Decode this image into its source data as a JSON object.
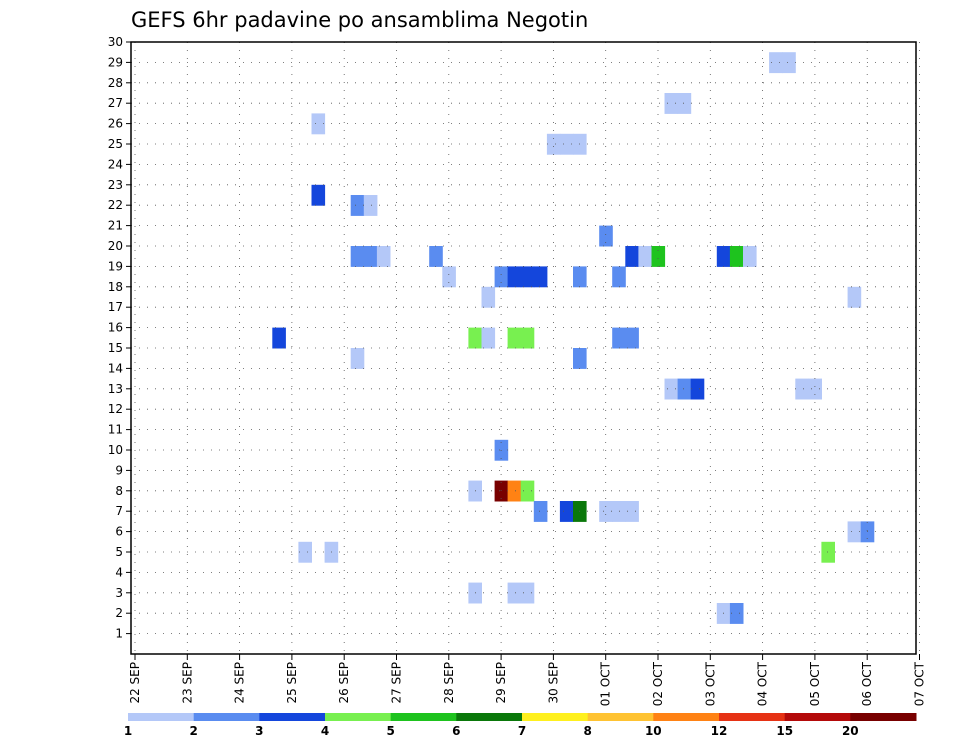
{
  "chart_data": {
    "type": "heatmap",
    "title": "GEFS 6hr padavine po ansamblima Negotin",
    "xlabel": "",
    "ylabel": "",
    "x_ticks": [
      "22 SEP",
      "23 SEP",
      "24 SEP",
      "25 SEP",
      "26 SEP",
      "27 SEP",
      "28 SEP",
      "29 SEP",
      "30 SEP",
      "01 OCT",
      "02 OCT",
      "03 OCT",
      "04 OCT",
      "05 OCT",
      "06 OCT",
      "07 OCT"
    ],
    "y_ticks": [
      "1",
      "2",
      "3",
      "4",
      "5",
      "6",
      "7",
      "8",
      "9",
      "10",
      "11",
      "12",
      "13",
      "14",
      "15",
      "16",
      "17",
      "18",
      "19",
      "20",
      "21",
      "22",
      "23",
      "24",
      "25",
      "26",
      "27",
      "28",
      "29",
      "30"
    ],
    "xlim": [
      0,
      15
    ],
    "ylim": [
      0,
      30
    ],
    "grid": true,
    "colorbar": {
      "colors": [
        "#b4c8f8",
        "#5a8cf0",
        "#1446dc",
        "#78f050",
        "#1ec31e",
        "#0a780a",
        "#fff01e",
        "#ffc332",
        "#ff8214",
        "#e63214",
        "#b40a0a",
        "#780000"
      ],
      "labels": [
        "1",
        "2",
        "3",
        "4",
        "5",
        "6",
        "7",
        "8",
        "10",
        "12",
        "15",
        "20"
      ]
    },
    "cells": [
      {
        "x": 5.75,
        "y": 15.5,
        "v": 3
      },
      {
        "x": 6.25,
        "y": 5,
        "v": 1
      },
      {
        "x": 6.5,
        "y": 22.5,
        "v": 3
      },
      {
        "x": 6.5,
        "y": 26,
        "v": 1
      },
      {
        "x": 6.75,
        "y": 5,
        "v": 1
      },
      {
        "x": 7.25,
        "y": 14.5,
        "v": 1
      },
      {
        "x": 7.25,
        "y": 19.5,
        "v": 2
      },
      {
        "x": 7.25,
        "y": 22,
        "v": 2
      },
      {
        "x": 7.5,
        "y": 19.5,
        "v": 2
      },
      {
        "x": 7.5,
        "y": 22,
        "v": 1
      },
      {
        "x": 7.75,
        "y": 19.5,
        "v": 1
      },
      {
        "x": 8.75,
        "y": 19.5,
        "v": 2
      },
      {
        "x": 9,
        "y": 18.5,
        "v": 1
      },
      {
        "x": 9.5,
        "y": 3,
        "v": 1
      },
      {
        "x": 9.5,
        "y": 8,
        "v": 1
      },
      {
        "x": 9.5,
        "y": 15.5,
        "v": 4
      },
      {
        "x": 9.75,
        "y": 15.5,
        "v": 1
      },
      {
        "x": 9.75,
        "y": 17.5,
        "v": 1
      },
      {
        "x": 10,
        "y": 8,
        "v": 20
      },
      {
        "x": 10,
        "y": 10,
        "v": 2
      },
      {
        "x": 10,
        "y": 18.5,
        "v": 2
      },
      {
        "x": 10.25,
        "y": 3,
        "v": 1
      },
      {
        "x": 10.25,
        "y": 8,
        "v": 10
      },
      {
        "x": 10.25,
        "y": 15.5,
        "v": 4
      },
      {
        "x": 10.25,
        "y": 18.5,
        "v": 3
      },
      {
        "x": 10.5,
        "y": 3,
        "v": 1
      },
      {
        "x": 10.5,
        "y": 8,
        "v": 4
      },
      {
        "x": 10.5,
        "y": 15.5,
        "v": 4
      },
      {
        "x": 10.5,
        "y": 18.5,
        "v": 3
      },
      {
        "x": 10.75,
        "y": 7,
        "v": 2
      },
      {
        "x": 10.75,
        "y": 18.5,
        "v": 3
      },
      {
        "x": 11,
        "y": 25,
        "v": 1
      },
      {
        "x": 11.25,
        "y": 7,
        "v": 3
      },
      {
        "x": 11.25,
        "y": 25,
        "v": 1
      },
      {
        "x": 11.5,
        "y": 7,
        "v": 6
      },
      {
        "x": 11.5,
        "y": 14.5,
        "v": 2
      },
      {
        "x": 11.5,
        "y": 18.5,
        "v": 2
      },
      {
        "x": 11.5,
        "y": 25,
        "v": 1
      },
      {
        "x": 12,
        "y": 7,
        "v": 1
      },
      {
        "x": 12,
        "y": 20.5,
        "v": 2
      },
      {
        "x": 12.25,
        "y": 7,
        "v": 1
      },
      {
        "x": 12.25,
        "y": 15.5,
        "v": 2
      },
      {
        "x": 12.25,
        "y": 18.5,
        "v": 2
      },
      {
        "x": 12.5,
        "y": 7,
        "v": 1
      },
      {
        "x": 12.5,
        "y": 15.5,
        "v": 2
      },
      {
        "x": 12.5,
        "y": 19.5,
        "v": 3
      },
      {
        "x": 12.75,
        "y": 19.5,
        "v": 1
      },
      {
        "x": 13,
        "y": 19.5,
        "v": 5
      },
      {
        "x": 13.25,
        "y": 13,
        "v": 1
      },
      {
        "x": 13.25,
        "y": 27,
        "v": 1
      },
      {
        "x": 13.5,
        "y": 13,
        "v": 2
      },
      {
        "x": 13.5,
        "y": 27,
        "v": 1
      },
      {
        "x": 13.75,
        "y": 13,
        "v": 3
      },
      {
        "x": 14.25,
        "y": 2,
        "v": 1
      },
      {
        "x": 14.25,
        "y": 19.5,
        "v": 3
      },
      {
        "x": 14.5,
        "y": 2,
        "v": 2
      },
      {
        "x": 14.5,
        "y": 19.5,
        "v": 5
      },
      {
        "x": 14.75,
        "y": 19.5,
        "v": 1
      },
      {
        "x": 15.25,
        "y": 29,
        "v": 1
      },
      {
        "x": 15.5,
        "y": 29,
        "v": 1
      },
      {
        "x": 15.75,
        "y": 13,
        "v": 1
      },
      {
        "x": 16,
        "y": 13,
        "v": 1
      },
      {
        "x": 16.25,
        "y": 5,
        "v": 4
      },
      {
        "x": 16.75,
        "y": 17.5,
        "v": 1
      },
      {
        "x": 16.75,
        "y": 6,
        "v": 1
      },
      {
        "x": 17,
        "y": 6,
        "v": 2
      }
    ]
  }
}
